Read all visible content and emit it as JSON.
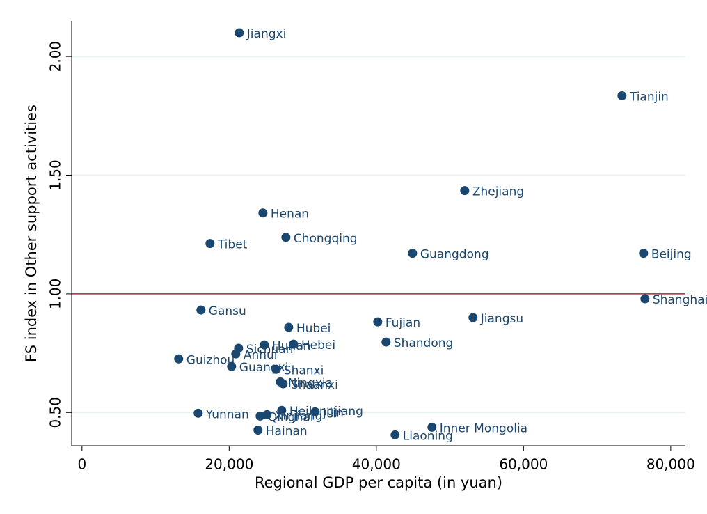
{
  "chart_data": {
    "type": "scatter",
    "x_label": "Regional GDP per capita (in yuan)",
    "y_label": "FS index in Other support activities",
    "xlim": [
      -1400,
      82000
    ],
    "ylim": [
      0.36,
      2.15
    ],
    "xticks": [
      0,
      {
        "value": 20000,
        "label": "20,000"
      },
      {
        "value": 40000,
        "label": "40,000"
      },
      {
        "value": 60000,
        "label": "60,000"
      },
      {
        "value": 80000,
        "label": "80,000"
      }
    ],
    "yticks": [
      {
        "value": 0.5,
        "label": "0.50"
      },
      {
        "value": 1,
        "label": "1.00"
      },
      {
        "value": 1.5,
        "label": "1.50"
      },
      {
        "value": 2,
        "label": "2.00"
      }
    ],
    "grid": true,
    "reference_line": {
      "value": 1,
      "color": "#b0243c"
    },
    "series": [
      {
        "color": "#1a476f",
        "labels": [
          "Jiangxi",
          "Tianjin",
          "Zhejiang",
          "Henan",
          "Chongqing",
          "Tibet",
          "Guangdong",
          "Beijing",
          "Shanghai",
          "Gansu",
          "Hubei",
          "Fujian",
          "Jiangsu",
          "Shandong",
          "Hunan",
          "Hebei",
          "Sichuan",
          "Anhui",
          "Guizhou",
          "Guangxi",
          "Shanxi",
          "Ningxia",
          "Shaanxi",
          "Heilongjiang",
          "Jilin",
          "Yunnan",
          "Qinghai",
          "Xinjiang",
          "Inner Mongolia",
          "Hainan",
          "Liaoning"
        ],
        "x": [
          21370,
          73380,
          52010,
          24590,
          27710,
          17400,
          44920,
          76310,
          76500,
          16170,
          28090,
          40190,
          53140,
          41320,
          24780,
          28750,
          21280,
          20900,
          13140,
          20330,
          26380,
          26950,
          27330,
          27140,
          31680,
          15790,
          24210,
          25150,
          47560,
          23920,
          42550
        ],
        "values": [
          2.1,
          1.835,
          1.435,
          1.341,
          1.238,
          1.212,
          1.171,
          1.171,
          0.979,
          0.932,
          0.859,
          0.882,
          0.9,
          0.797,
          0.785,
          0.788,
          0.771,
          0.747,
          0.726,
          0.694,
          0.682,
          0.629,
          0.621,
          0.509,
          0.503,
          0.497,
          0.485,
          0.491,
          0.438,
          0.426,
          0.406
        ]
      }
    ]
  }
}
